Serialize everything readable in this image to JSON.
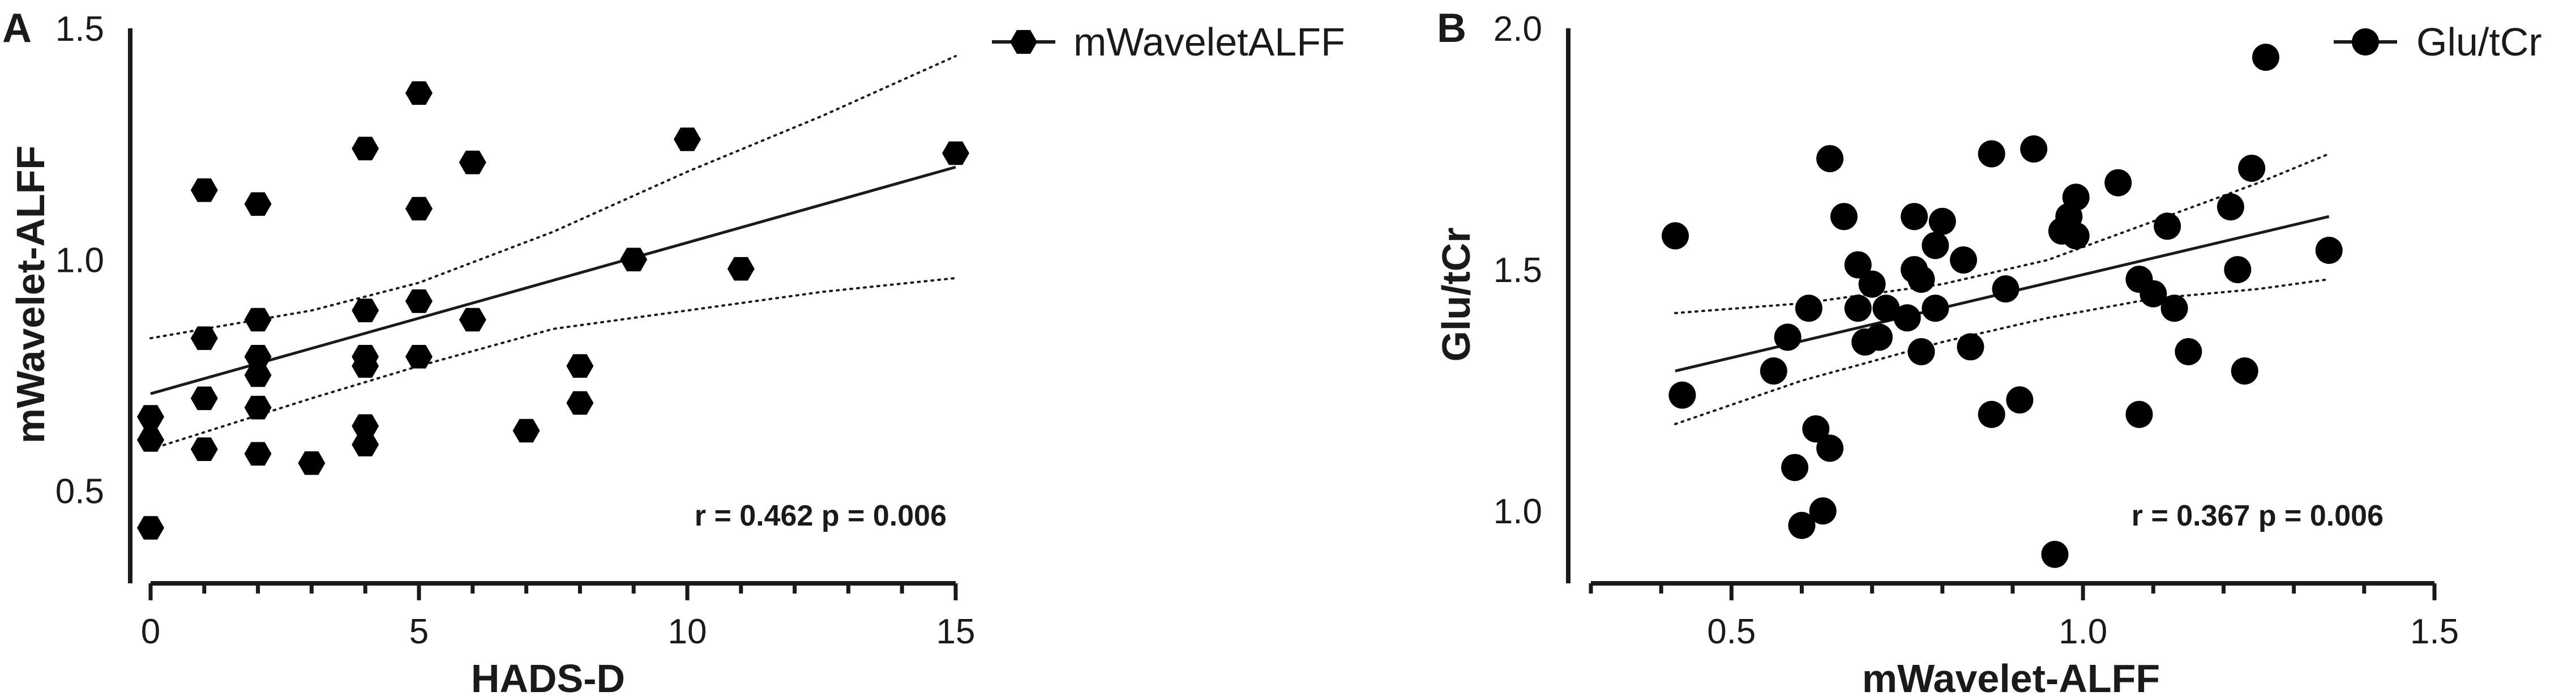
{
  "chart_data": [
    {
      "type": "scatter",
      "panel_label": "A",
      "xlabel": "HADS-D",
      "ylabel": "mWavelet-ALFF",
      "xlim": [
        0,
        15
      ],
      "ylim": [
        0.3,
        1.5
      ],
      "xticks": [
        "0",
        "5",
        "10",
        "15"
      ],
      "yticks": [
        "0.5",
        "1.0",
        "1.5"
      ],
      "legend": {
        "label": "mWaveletALFF",
        "position": "top-right",
        "marker": "hexagon"
      },
      "annotation": "r = 0.462 p = 0.006",
      "fit_line": {
        "x": [
          0,
          15
        ],
        "y": [
          0.71,
          1.2
        ]
      },
      "ci_upper": {
        "x": [
          0,
          3,
          5,
          7.5,
          10,
          12.5,
          15
        ],
        "y": [
          0.83,
          0.89,
          0.95,
          1.06,
          1.19,
          1.31,
          1.44
        ]
      },
      "ci_lower": {
        "x": [
          0,
          3,
          5,
          7.5,
          10,
          12.5,
          15
        ],
        "y": [
          0.59,
          0.7,
          0.77,
          0.85,
          0.89,
          0.93,
          0.96
        ]
      },
      "series": [
        {
          "name": "mWaveletALFF",
          "points": [
            [
              0,
              0.66
            ],
            [
              0,
              0.61
            ],
            [
              0,
              0.42
            ],
            [
              1,
              1.15
            ],
            [
              1,
              0.83
            ],
            [
              1,
              0.7
            ],
            [
              1,
              0.59
            ],
            [
              2,
              1.12
            ],
            [
              2,
              0.87
            ],
            [
              2,
              0.79
            ],
            [
              2,
              0.75
            ],
            [
              2,
              0.68
            ],
            [
              2,
              0.58
            ],
            [
              3,
              0.56
            ],
            [
              4,
              1.24
            ],
            [
              4,
              0.89
            ],
            [
              4,
              0.79
            ],
            [
              4,
              0.77
            ],
            [
              4,
              0.64
            ],
            [
              4,
              0.6
            ],
            [
              5,
              1.36
            ],
            [
              5,
              1.11
            ],
            [
              5,
              0.91
            ],
            [
              5,
              0.79
            ],
            [
              6,
              1.21
            ],
            [
              6,
              0.87
            ],
            [
              7,
              0.63
            ],
            [
              8,
              0.77
            ],
            [
              8,
              0.69
            ],
            [
              9,
              1.0
            ],
            [
              10,
              1.26
            ],
            [
              11,
              0.98
            ],
            [
              15,
              1.23
            ]
          ]
        }
      ]
    },
    {
      "type": "scatter",
      "panel_label": "B",
      "xlabel": "mWavelet-ALFF",
      "ylabel": "Glu/tCr",
      "xlim": [
        0.3,
        1.5
      ],
      "ylim": [
        0.85,
        2.0
      ],
      "xticks": [
        "0.5",
        "1.0",
        "1.5"
      ],
      "yticks": [
        "1.0",
        "1.5",
        "2.0"
      ],
      "legend": {
        "label": "Glu/tCr",
        "position": "top-right",
        "marker": "circle"
      },
      "annotation": "r = 0.367 p = 0.006",
      "fit_line": {
        "x": [
          0.42,
          1.35
        ],
        "y": [
          1.29,
          1.61
        ]
      },
      "ci_upper": {
        "x": [
          0.42,
          0.6,
          0.8,
          0.95,
          1.1,
          1.25,
          1.35
        ],
        "y": [
          1.41,
          1.43,
          1.47,
          1.52,
          1.6,
          1.68,
          1.74
        ]
      },
      "ci_lower": {
        "x": [
          0.42,
          0.6,
          0.8,
          0.95,
          1.1,
          1.25,
          1.35
        ],
        "y": [
          1.18,
          1.27,
          1.35,
          1.4,
          1.44,
          1.46,
          1.48
        ]
      },
      "series": [
        {
          "name": "Glu/tCr",
          "points": [
            [
              0.42,
              1.57
            ],
            [
              0.43,
              1.24
            ],
            [
              0.56,
              1.29
            ],
            [
              0.58,
              1.36
            ],
            [
              0.59,
              1.09
            ],
            [
              0.6,
              0.97
            ],
            [
              0.61,
              1.42
            ],
            [
              0.62,
              1.17
            ],
            [
              0.63,
              1.0
            ],
            [
              0.64,
              1.13
            ],
            [
              0.64,
              1.73
            ],
            [
              0.66,
              1.61
            ],
            [
              0.68,
              1.51
            ],
            [
              0.68,
              1.42
            ],
            [
              0.69,
              1.35
            ],
            [
              0.7,
              1.47
            ],
            [
              0.71,
              1.36
            ],
            [
              0.72,
              1.42
            ],
            [
              0.75,
              1.4
            ],
            [
              0.76,
              1.61
            ],
            [
              0.76,
              1.5
            ],
            [
              0.77,
              1.48
            ],
            [
              0.77,
              1.33
            ],
            [
              0.79,
              1.42
            ],
            [
              0.79,
              1.55
            ],
            [
              0.8,
              1.6
            ],
            [
              0.83,
              1.52
            ],
            [
              0.84,
              1.34
            ],
            [
              0.87,
              1.74
            ],
            [
              0.87,
              1.2
            ],
            [
              0.89,
              1.46
            ],
            [
              0.91,
              1.23
            ],
            [
              0.93,
              1.75
            ],
            [
              0.96,
              0.91
            ],
            [
              0.97,
              1.58
            ],
            [
              0.98,
              1.61
            ],
            [
              0.99,
              1.57
            ],
            [
              0.99,
              1.65
            ],
            [
              1.05,
              1.68
            ],
            [
              1.08,
              1.48
            ],
            [
              1.08,
              1.2
            ],
            [
              1.1,
              1.45
            ],
            [
              1.12,
              1.59
            ],
            [
              1.13,
              1.42
            ],
            [
              1.15,
              1.33
            ],
            [
              1.21,
              1.63
            ],
            [
              1.22,
              1.5
            ],
            [
              1.23,
              1.29
            ],
            [
              1.24,
              1.71
            ],
            [
              1.26,
              1.94
            ],
            [
              1.35,
              1.54
            ]
          ]
        }
      ]
    }
  ]
}
